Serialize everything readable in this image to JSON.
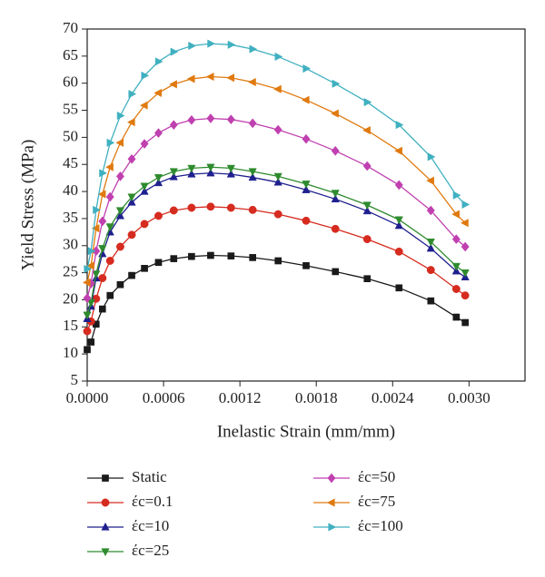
{
  "chart_data": {
    "type": "line",
    "x_label": "Inelastic Strain (mm/mm)",
    "y_label": "Yield Stress (MPa)",
    "x": [
      0,
      3e-05,
      7e-05,
      0.00012,
      0.00018,
      0.00026,
      0.00035,
      0.00045,
      0.00056,
      0.00068,
      0.00082,
      0.00097,
      0.00113,
      0.0013,
      0.0015,
      0.00172,
      0.00195,
      0.0022,
      0.00245,
      0.0027,
      0.0029,
      0.00297
    ],
    "xlim": [
      0,
      0.00344
    ],
    "ylim": [
      5,
      70
    ],
    "xticks": [
      {
        "value": 0,
        "label": "0.0000"
      },
      {
        "value": 0.0006,
        "label": "0.0006"
      },
      {
        "value": 0.0012,
        "label": "0.0012"
      },
      {
        "value": 0.0018,
        "label": "0.0018"
      },
      {
        "value": 0.0024,
        "label": "0.0024"
      },
      {
        "value": 0.003,
        "label": "0.0030"
      }
    ],
    "yticks": [
      5,
      10,
      15,
      20,
      25,
      30,
      35,
      40,
      45,
      50,
      55,
      60,
      65,
      70
    ],
    "series": [
      {
        "name": "Static",
        "color": "#1a1a1a",
        "marker": "square",
        "values": [
          10.8,
          12.2,
          15.5,
          18.3,
          20.8,
          22.8,
          24.5,
          25.8,
          26.9,
          27.6,
          28.0,
          28.2,
          28.1,
          27.8,
          27.2,
          26.3,
          25.2,
          23.9,
          22.2,
          19.8,
          16.8,
          15.8
        ]
      },
      {
        "name": "έc=0.1",
        "color": "#d62b1f",
        "marker": "circle",
        "values": [
          14.2,
          16.0,
          20.2,
          24.0,
          27.2,
          29.8,
          32.0,
          34.0,
          35.5,
          36.5,
          37.0,
          37.2,
          37.0,
          36.6,
          35.8,
          34.6,
          33.1,
          31.2,
          28.9,
          25.5,
          22.0,
          20.8
        ]
      },
      {
        "name": "έc=10",
        "color": "#1f1f8f",
        "marker": "triangle-up",
        "values": [
          16.5,
          18.8,
          24.0,
          28.5,
          32.5,
          35.5,
          38.0,
          40.0,
          41.6,
          42.7,
          43.2,
          43.4,
          43.2,
          42.6,
          41.7,
          40.3,
          38.6,
          36.4,
          33.7,
          29.5,
          25.3,
          24.2
        ]
      },
      {
        "name": "έc=25",
        "color": "#2e8b2e",
        "marker": "triangle-down",
        "values": [
          17.2,
          19.5,
          24.8,
          29.5,
          33.5,
          36.5,
          39.0,
          41.0,
          42.6,
          43.7,
          44.3,
          44.5,
          44.3,
          43.7,
          42.8,
          41.4,
          39.7,
          37.5,
          34.8,
          30.7,
          26.2,
          25.0
        ]
      },
      {
        "name": "έc=50",
        "color": "#c040b0",
        "marker": "diamond",
        "values": [
          20.3,
          23.0,
          29.0,
          34.5,
          39.0,
          42.8,
          46.0,
          48.8,
          50.8,
          52.3,
          53.2,
          53.5,
          53.3,
          52.6,
          51.4,
          49.7,
          47.5,
          44.7,
          41.2,
          36.5,
          31.2,
          29.8
        ]
      },
      {
        "name": "έc=75",
        "color": "#e07a10",
        "marker": "triangle-left",
        "values": [
          23.2,
          26.3,
          33.2,
          39.5,
          44.5,
          49.0,
          52.8,
          55.9,
          58.2,
          59.8,
          60.8,
          61.2,
          61.0,
          60.2,
          58.9,
          56.9,
          54.4,
          51.3,
          47.5,
          42.0,
          35.8,
          34.2
        ]
      },
      {
        "name": "έc=100",
        "color": "#40b0c0",
        "marker": "triangle-right",
        "values": [
          25.7,
          29.0,
          36.6,
          43.4,
          49.0,
          54.0,
          58.0,
          61.4,
          64.0,
          65.8,
          66.9,
          67.3,
          67.1,
          66.3,
          64.9,
          62.7,
          59.9,
          56.5,
          52.3,
          46.4,
          39.3,
          37.6
        ]
      }
    ]
  }
}
